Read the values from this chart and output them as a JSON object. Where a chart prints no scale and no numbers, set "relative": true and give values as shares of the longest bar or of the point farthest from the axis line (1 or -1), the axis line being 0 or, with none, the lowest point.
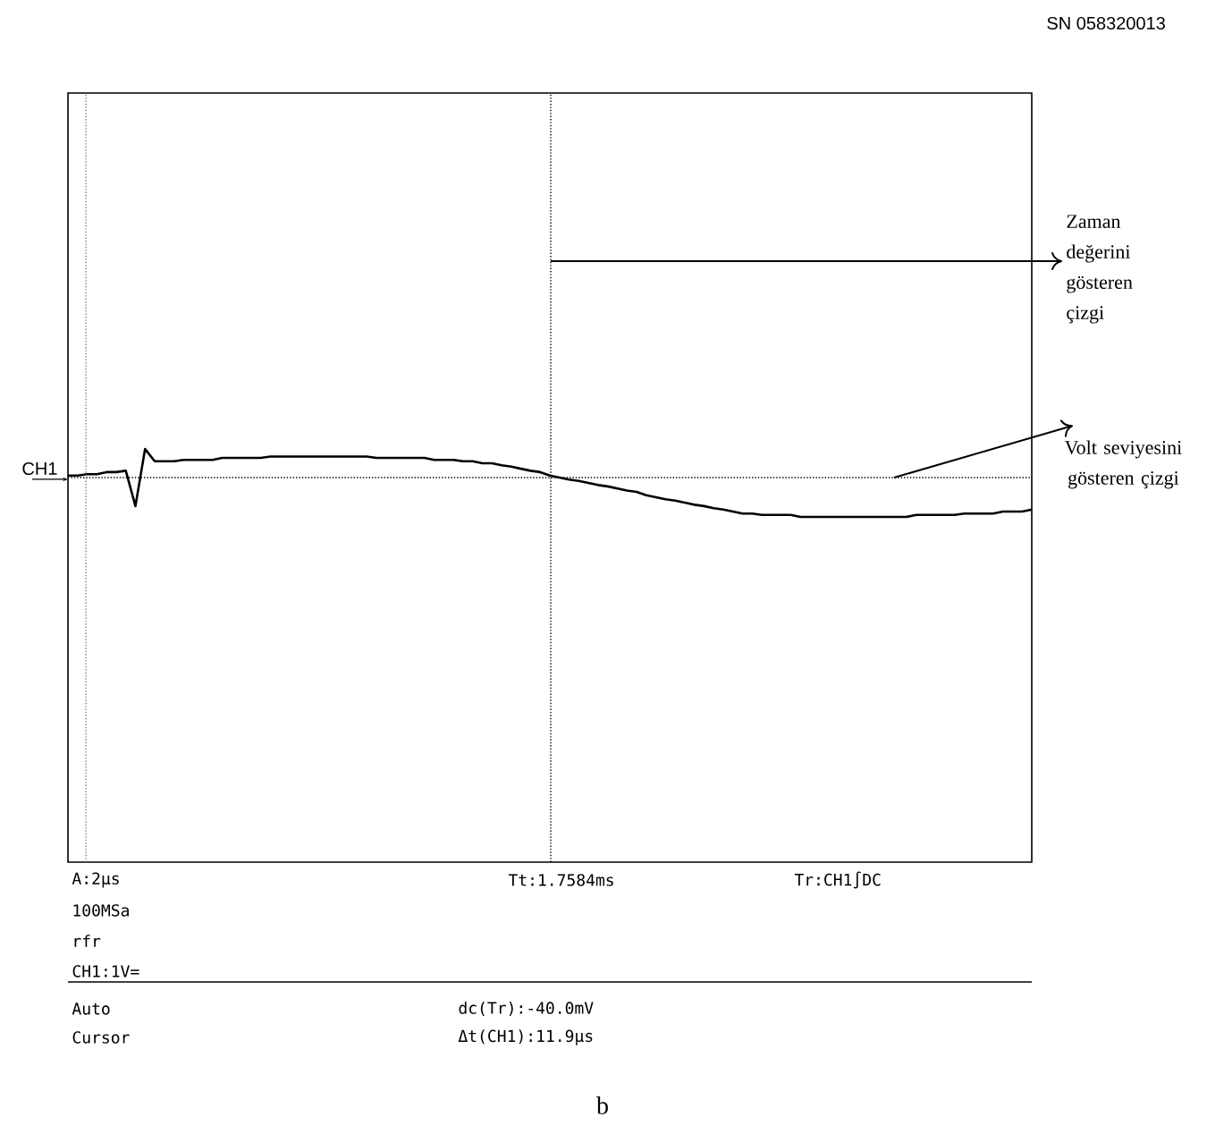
{
  "chart_data": {
    "type": "line",
    "relative": true,
    "color": "#000000",
    "line_style": "solid",
    "marker": "none",
    "categories": [
      null,
      null,
      null,
      null,
      null,
      null,
      null,
      null,
      null,
      null,
      null,
      null,
      null,
      null,
      null,
      null,
      null,
      null,
      null,
      null,
      null,
      null,
      null,
      null,
      null,
      null,
      null,
      null,
      null,
      null,
      null,
      null,
      null,
      null,
      null,
      null,
      null,
      null,
      null,
      null,
      null,
      null,
      null,
      null,
      null,
      null,
      null,
      null,
      null,
      null,
      null,
      null,
      null,
      null,
      null,
      null,
      null,
      null,
      null,
      null,
      null,
      null,
      null,
      null,
      null,
      null,
      null,
      null,
      null,
      null,
      null,
      null,
      null,
      null,
      null,
      null,
      null,
      null,
      null,
      null,
      null,
      null,
      null,
      null,
      null,
      null,
      null,
      null,
      null,
      null,
      null,
      null,
      null,
      null,
      null,
      null,
      null,
      null,
      null,
      null,
      null
    ],
    "values": [
      0.61,
      0.61,
      0.63,
      0.63,
      0.66,
      0.66,
      0.68,
      0.16,
      1.0,
      0.82,
      0.82,
      0.82,
      0.84,
      0.84,
      0.84,
      0.84,
      0.87,
      0.87,
      0.87,
      0.87,
      0.87,
      0.89,
      0.89,
      0.89,
      0.89,
      0.89,
      0.89,
      0.89,
      0.89,
      0.89,
      0.89,
      0.89,
      0.87,
      0.87,
      0.87,
      0.87,
      0.87,
      0.87,
      0.84,
      0.84,
      0.84,
      0.82,
      0.82,
      0.79,
      0.79,
      0.76,
      0.74,
      0.71,
      0.68,
      0.66,
      0.61,
      0.58,
      0.55,
      0.53,
      0.5,
      0.47,
      0.45,
      0.42,
      0.39,
      0.37,
      0.32,
      0.29,
      0.26,
      0.24,
      0.21,
      0.18,
      0.16,
      0.13,
      0.11,
      0.08,
      0.05,
      0.05,
      0.03,
      0.03,
      0.03,
      0.03,
      0,
      0,
      0,
      0,
      0,
      0,
      0,
      0,
      0,
      0,
      0,
      0,
      0.03,
      0.03,
      0.03,
      0.03,
      0.03,
      0.05,
      0.05,
      0.05,
      0.05,
      0.08,
      0.08,
      0.08,
      0.11
    ],
    "ref_lines": [
      {
        "axis": "y",
        "value": 0.58,
        "label": "Volt seviyesini gösteren çizgi",
        "line_style": "dotted",
        "color": "#000000"
      }
    ],
    "annotations": [
      "Zaman değerini gösteren çizgi",
      "CH1",
      "SN 058320013",
      "A:2µs",
      "100MSa",
      "rfr",
      "CH1:1V=",
      "Tt:1.7584ms",
      "Tr:CH1∫DC",
      "Auto",
      "Cursor",
      "dc(Tr):-40.0mV",
      "Δt(CH1):11.9µs",
      "b"
    ]
  }
}
